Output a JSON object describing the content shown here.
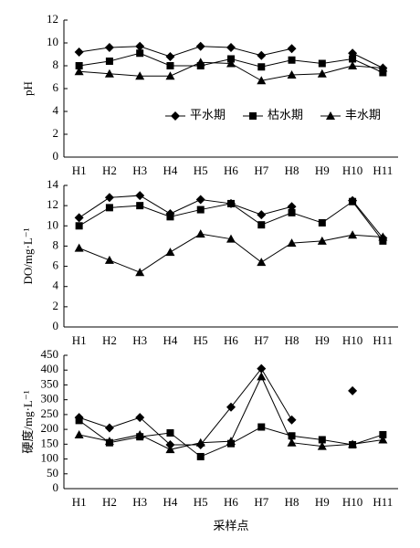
{
  "chart_data": [
    {
      "type": "line",
      "ylabel": "pH",
      "ylim": [
        0,
        12
      ],
      "yticks": [
        0,
        2,
        4,
        6,
        8,
        10,
        12
      ],
      "legend": "center-right",
      "categories": [
        "H1",
        "H2",
        "H3",
        "H4",
        "H5",
        "H6",
        "H7",
        "H8",
        "H9",
        "H10",
        "H11"
      ],
      "series": [
        {
          "name": "平水期",
          "color": "#000000",
          "marker": "diamond",
          "values": [
            9.2,
            9.6,
            9.7,
            8.8,
            9.7,
            9.6,
            8.9,
            9.5,
            null,
            9.1,
            7.8
          ]
        },
        {
          "name": "枯水期",
          "color": "#000000",
          "marker": "square",
          "values": [
            8.0,
            8.4,
            9.1,
            8.0,
            8.0,
            8.6,
            7.9,
            8.5,
            8.2,
            8.6,
            7.4
          ]
        },
        {
          "name": "丰水期",
          "color": "#000000",
          "marker": "triangle",
          "values": [
            7.5,
            7.3,
            7.1,
            7.1,
            8.3,
            8.2,
            6.7,
            7.2,
            7.3,
            8.0,
            7.8
          ]
        }
      ]
    },
    {
      "type": "line",
      "ylabel": "DO/mg·L⁻¹",
      "ylim": [
        0,
        14
      ],
      "yticks": [
        0,
        2,
        4,
        6,
        8,
        10,
        12,
        14
      ],
      "categories": [
        "H1",
        "H2",
        "H3",
        "H4",
        "H5",
        "H6",
        "H7",
        "H8",
        "H9",
        "H10",
        "H11"
      ],
      "series": [
        {
          "color": "#000000",
          "marker": "diamond",
          "values": [
            10.8,
            12.8,
            13.0,
            11.2,
            12.6,
            12.2,
            11.1,
            11.9,
            null,
            12.5,
            8.8
          ]
        },
        {
          "color": "#000000",
          "marker": "square",
          "values": [
            10.0,
            11.8,
            12.0,
            10.9,
            11.6,
            12.2,
            10.1,
            11.3,
            10.3,
            12.4,
            8.5
          ]
        },
        {
          "color": "#000000",
          "marker": "triangle",
          "values": [
            7.8,
            6.6,
            5.4,
            7.4,
            9.2,
            8.7,
            6.4,
            8.3,
            8.5,
            9.1,
            8.9
          ]
        }
      ]
    },
    {
      "type": "line",
      "ylabel": "硬度/mg·L⁻¹",
      "xlabel": "采样点",
      "ylim": [
        0,
        450
      ],
      "yticks": [
        0,
        50,
        100,
        150,
        200,
        250,
        300,
        350,
        400,
        450
      ],
      "categories": [
        "H1",
        "H2",
        "H3",
        "H4",
        "H5",
        "H6",
        "H7",
        "H8",
        "H9",
        "H10",
        "H11"
      ],
      "series": [
        {
          "color": "#000000",
          "marker": "diamond",
          "values": [
            240,
            205,
            240,
            148,
            148,
            275,
            405,
            232,
            null,
            330,
            null
          ]
        },
        {
          "color": "#000000",
          "marker": "square",
          "values": [
            230,
            155,
            175,
            188,
            108,
            152,
            208,
            178,
            165,
            148,
            182
          ]
        },
        {
          "color": "#000000",
          "marker": "triangle",
          "values": [
            182,
            160,
            182,
            132,
            155,
            160,
            378,
            155,
            143,
            150,
            165
          ]
        }
      ]
    }
  ]
}
